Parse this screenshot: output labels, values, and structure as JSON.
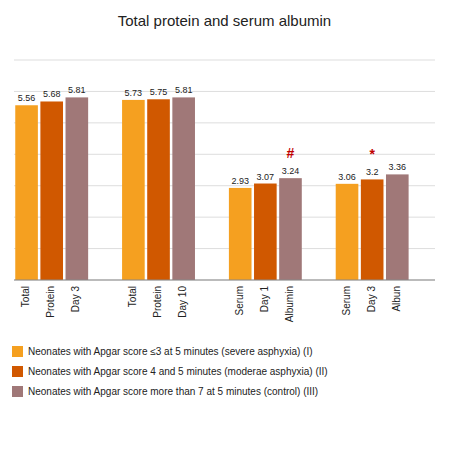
{
  "chart_data": {
    "type": "bar",
    "title": "Total protein and serum albumin",
    "categories": [
      "Total",
      "Protein",
      "Day 3",
      "Total",
      "Protein",
      "Day 10",
      "Serum",
      "Day 1",
      "Albumin",
      "Serum",
      "Day 3",
      "Albun"
    ],
    "series": [
      {
        "name": "Neonates with Apgar score ≤3 at 5 minutes (severe asphyxia) (I)",
        "color": "#f5a020",
        "values": [
          5.56,
          null,
          null,
          5.73,
          null,
          null,
          2.93,
          null,
          null,
          3.06,
          null,
          null
        ]
      },
      {
        "name": "Neonates with Apgar score 4 and 5 minutes (moderae asphyxia) (II)",
        "color": "#d05800",
        "values": [
          null,
          5.68,
          null,
          null,
          5.75,
          null,
          null,
          3.07,
          null,
          null,
          3.2,
          null
        ]
      },
      {
        "name": "Neonates with Apgar score more than 7 at 5 minutes (control) (III)",
        "color": "#a07878",
        "values": [
          null,
          null,
          5.81,
          null,
          null,
          5.81,
          null,
          null,
          3.24,
          null,
          null,
          3.36
        ]
      }
    ],
    "annotations": [
      {
        "text": "#",
        "series": 2,
        "index": 8
      },
      {
        "text": "*",
        "series": 1,
        "index": 10
      }
    ],
    "ylim": [
      0,
      7
    ],
    "yticks": [
      0,
      1,
      2,
      3,
      4,
      5,
      6,
      7
    ],
    "grid": true,
    "tick_labels": "x",
    "data_labels": true,
    "legend": "bottom"
  }
}
